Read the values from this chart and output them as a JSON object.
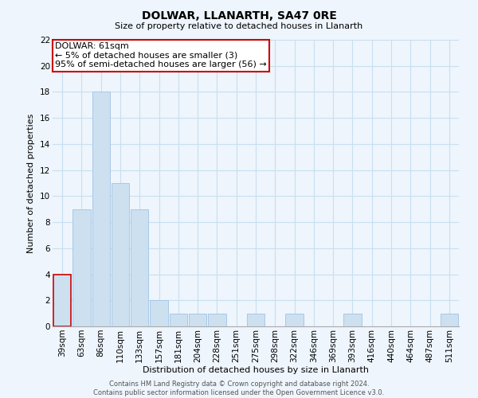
{
  "title": "DOLWAR, LLANARTH, SA47 0RE",
  "subtitle": "Size of property relative to detached houses in Llanarth",
  "xlabel": "Distribution of detached houses by size in Llanarth",
  "ylabel": "Number of detached properties",
  "footer_lines": [
    "Contains HM Land Registry data © Crown copyright and database right 2024.",
    "Contains public sector information licensed under the Open Government Licence v3.0."
  ],
  "bin_labels": [
    "39sqm",
    "63sqm",
    "86sqm",
    "110sqm",
    "133sqm",
    "157sqm",
    "181sqm",
    "204sqm",
    "228sqm",
    "251sqm",
    "275sqm",
    "298sqm",
    "322sqm",
    "346sqm",
    "369sqm",
    "393sqm",
    "416sqm",
    "440sqm",
    "464sqm",
    "487sqm",
    "511sqm"
  ],
  "bar_heights": [
    4,
    9,
    18,
    11,
    9,
    2,
    1,
    1,
    1,
    0,
    1,
    0,
    1,
    0,
    0,
    1,
    0,
    0,
    0,
    0,
    1
  ],
  "bar_color": "#cce0f0",
  "bar_edge_color": "#a8c8e8",
  "highlight_bar_index": 0,
  "highlight_edge_color": "#cc0000",
  "annotation_box_text_line1": "DOLWAR: 61sqm",
  "annotation_box_text_line2": "← 5% of detached houses are smaller (3)",
  "annotation_box_text_line3": "95% of semi-detached houses are larger (56) →",
  "annotation_box_color": "#ffffff",
  "annotation_box_edge_color": "#cc0000",
  "ylim": [
    0,
    22
  ],
  "yticks": [
    0,
    2,
    4,
    6,
    8,
    10,
    12,
    14,
    16,
    18,
    20,
    22
  ],
  "grid_color": "#c8dff0",
  "background_color": "#eef5fc",
  "title_fontsize": 10,
  "subtitle_fontsize": 8,
  "axis_label_fontsize": 8,
  "tick_fontsize": 7.5,
  "footer_fontsize": 6,
  "annotation_fontsize": 8
}
